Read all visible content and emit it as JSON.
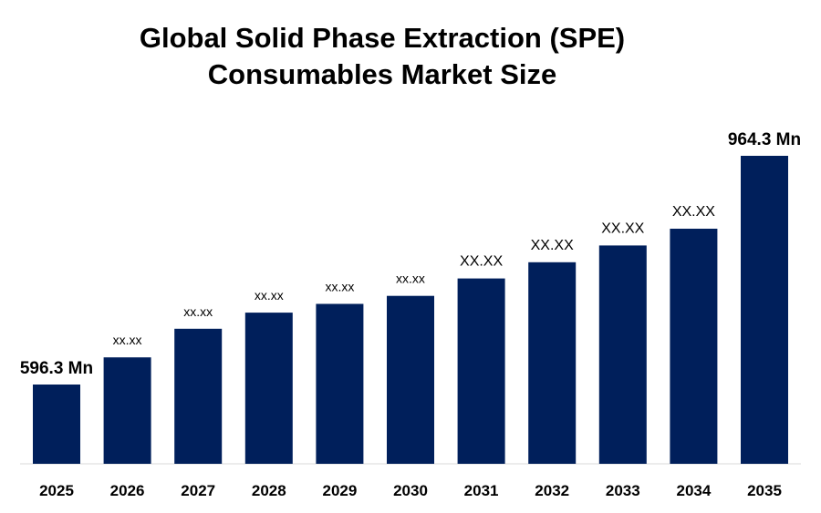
{
  "chart_data": {
    "type": "bar",
    "title_lines": [
      "Global Solid Phase Extraction (SPE)",
      "Consumables Market Size"
    ],
    "categories": [
      "2025",
      "2026",
      "2027",
      "2028",
      "2029",
      "2030",
      "2031",
      "2032",
      "2033",
      "2034",
      "2035"
    ],
    "values": [
      596.3,
      640,
      686,
      712,
      726,
      739,
      767,
      793,
      820,
      847,
      964.3
    ],
    "data_labels": [
      "596.3 Mn",
      "xx.xx",
      "xx.xx",
      "xx.xx",
      "xx.xx",
      "xx.xx",
      "XX.XX",
      "XX.XX",
      "XX.XX",
      "XX.XX",
      "964.3 Mn"
    ],
    "xlabel": "",
    "ylabel": "",
    "ylim": [
      200,
      1000
    ],
    "grid": false,
    "legend": "none",
    "bar_color": "#001f5b"
  }
}
